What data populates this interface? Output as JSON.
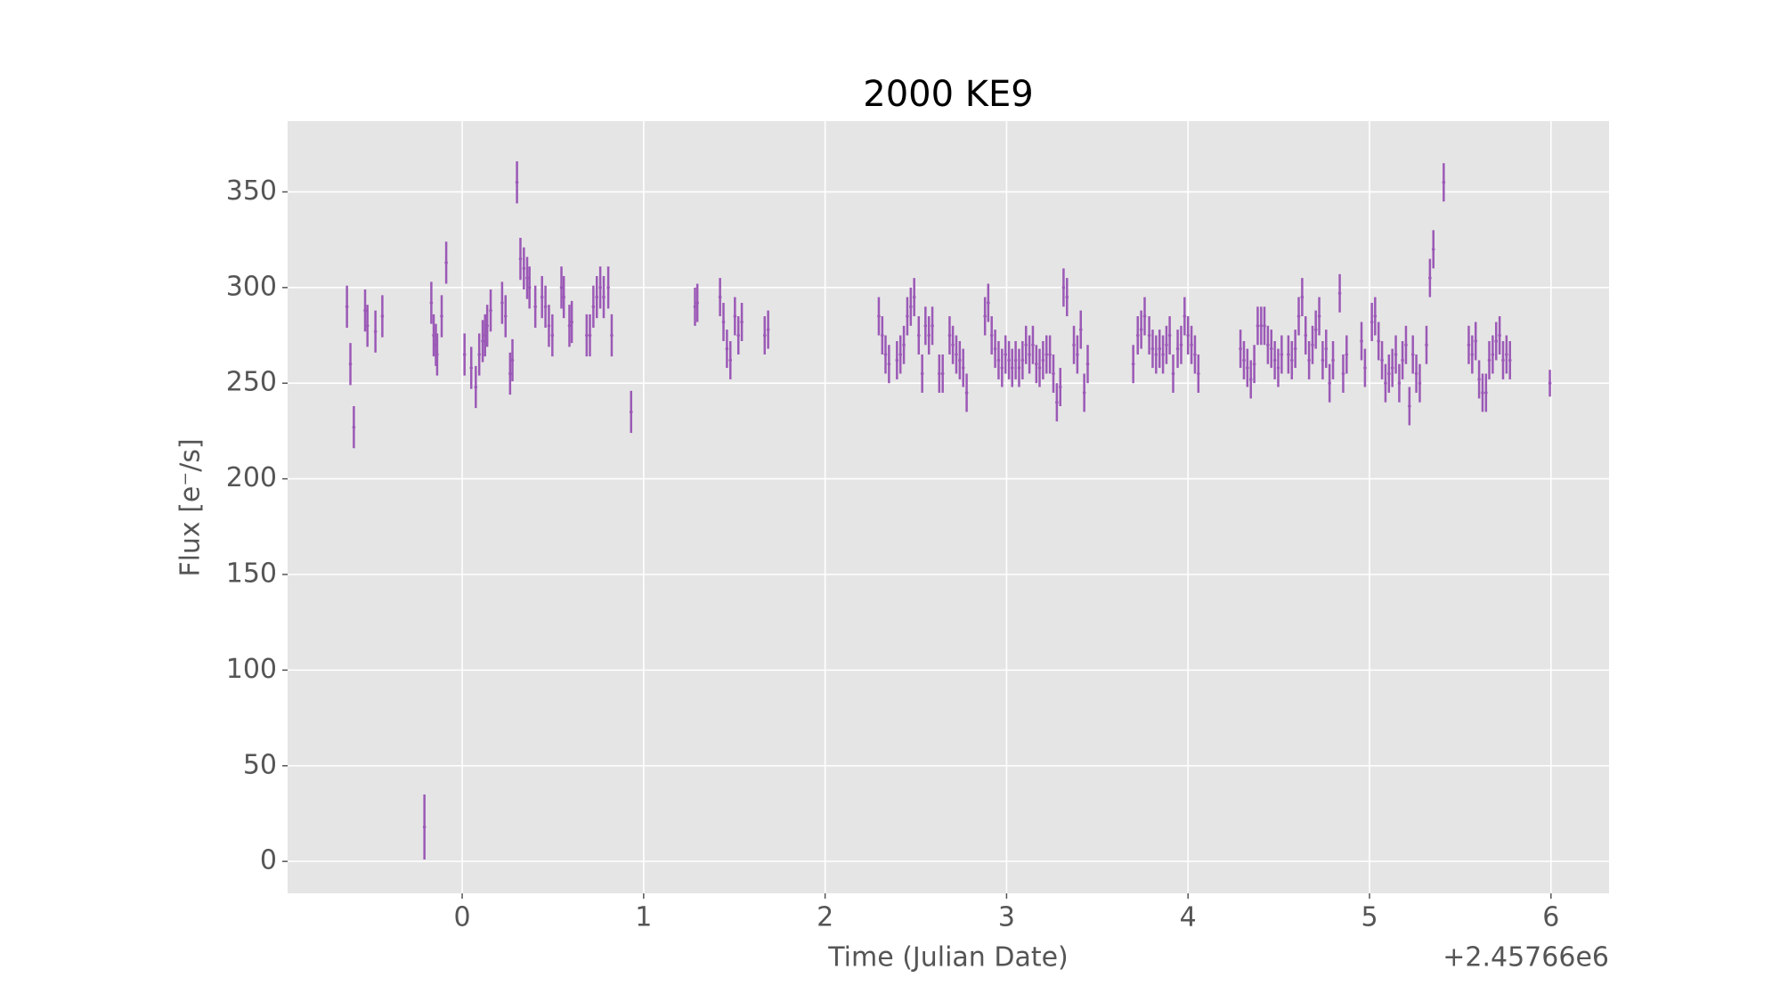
{
  "chart_data": {
    "type": "errorbar",
    "title": "2000 KE9",
    "x_label": "Time (Julian Date)",
    "y_label": "Flux [e⁻/s]",
    "x_offset_label": "+2.45766e6",
    "color": "#9b59b6",
    "grid": true,
    "xlim": [
      -0.962,
      6.32
    ],
    "ylim": [
      -16.7,
      387
    ],
    "xticks": [
      0,
      1,
      2,
      3,
      4,
      5,
      6
    ],
    "yticks": [
      0,
      50,
      100,
      150,
      200,
      250,
      300,
      350
    ],
    "x": [
      -0.635,
      -0.616,
      -0.597,
      -0.535,
      -0.522,
      -0.478,
      -0.44,
      -0.208,
      -0.17,
      -0.157,
      -0.145,
      -0.138,
      -0.113,
      -0.088,
      0.013,
      0.05,
      0.075,
      0.094,
      0.113,
      0.126,
      0.138,
      0.157,
      0.22,
      0.239,
      0.264,
      0.277,
      0.302,
      0.321,
      0.34,
      0.358,
      0.371,
      0.403,
      0.44,
      0.459,
      0.478,
      0.497,
      0.547,
      0.56,
      0.591,
      0.604,
      0.686,
      0.704,
      0.723,
      0.742,
      0.761,
      0.78,
      0.805,
      0.824,
      0.931,
      1.283,
      1.296,
      1.421,
      1.44,
      1.459,
      1.478,
      1.503,
      1.522,
      1.541,
      1.667,
      1.686,
      2.296,
      2.315,
      2.333,
      2.352,
      2.396,
      2.415,
      2.434,
      2.453,
      2.472,
      2.491,
      2.516,
      2.535,
      2.553,
      2.572,
      2.591,
      2.629,
      2.648,
      2.686,
      2.704,
      2.723,
      2.742,
      2.761,
      2.78,
      2.881,
      2.899,
      2.918,
      2.937,
      2.956,
      2.975,
      2.994,
      3.013,
      3.031,
      3.05,
      3.069,
      3.088,
      3.107,
      3.126,
      3.145,
      3.164,
      3.182,
      3.201,
      3.22,
      3.239,
      3.258,
      3.277,
      3.296,
      3.314,
      3.333,
      3.371,
      3.39,
      3.409,
      3.428,
      3.447,
      3.698,
      3.723,
      3.742,
      3.761,
      3.786,
      3.805,
      3.824,
      3.843,
      3.862,
      3.881,
      3.899,
      3.918,
      3.943,
      3.962,
      3.981,
      4.0,
      4.019,
      4.038,
      4.057,
      4.289,
      4.308,
      4.327,
      4.346,
      4.365,
      4.384,
      4.403,
      4.421,
      4.44,
      4.459,
      4.478,
      4.497,
      4.516,
      4.553,
      4.572,
      4.591,
      4.61,
      4.629,
      4.648,
      4.667,
      4.686,
      4.704,
      4.723,
      4.742,
      4.761,
      4.78,
      4.799,
      4.836,
      4.855,
      4.874,
      4.956,
      4.975,
      5.013,
      5.031,
      5.05,
      5.069,
      5.088,
      5.107,
      5.126,
      5.145,
      5.164,
      5.182,
      5.201,
      5.22,
      5.239,
      5.258,
      5.277,
      5.314,
      5.333,
      5.352,
      5.409,
      5.547,
      5.566,
      5.585,
      5.604,
      5.623,
      5.642,
      5.66,
      5.679,
      5.698,
      5.717,
      5.736,
      5.755,
      5.774,
      5.994
    ],
    "values": [
      290,
      260,
      227,
      288,
      280,
      277,
      285,
      18,
      292,
      275,
      270,
      265,
      285,
      313,
      265,
      258,
      248,
      265,
      272,
      275,
      280,
      288,
      292,
      285,
      255,
      262,
      355,
      315,
      310,
      305,
      300,
      290,
      295,
      290,
      280,
      275,
      300,
      295,
      280,
      282,
      275,
      275,
      290,
      295,
      300,
      295,
      300,
      275,
      235,
      290,
      292,
      295,
      282,
      268,
      262,
      285,
      275,
      282,
      275,
      278,
      285,
      275,
      265,
      260,
      262,
      265,
      270,
      285,
      290,
      295,
      275,
      255,
      280,
      275,
      280,
      255,
      255,
      275,
      270,
      265,
      262,
      258,
      245,
      285,
      292,
      275,
      268,
      262,
      258,
      265,
      262,
      258,
      262,
      258,
      262,
      270,
      265,
      270,
      260,
      258,
      262,
      265,
      265,
      255,
      240,
      248,
      300,
      295,
      270,
      265,
      278,
      245,
      260,
      260,
      275,
      278,
      285,
      275,
      268,
      265,
      268,
      265,
      270,
      275,
      255,
      268,
      270,
      285,
      275,
      270,
      265,
      255,
      268,
      262,
      258,
      252,
      260,
      280,
      280,
      280,
      270,
      268,
      262,
      258,
      265,
      265,
      262,
      268,
      285,
      295,
      275,
      262,
      270,
      278,
      285,
      262,
      268,
      250,
      262,
      297,
      255,
      265,
      272,
      258,
      282,
      285,
      272,
      262,
      250,
      255,
      258,
      265,
      250,
      262,
      270,
      238,
      265,
      255,
      250,
      270,
      305,
      320,
      355,
      270,
      265,
      272,
      252,
      245,
      245,
      262,
      265,
      272,
      275,
      262,
      265,
      262,
      250
    ],
    "errors": [
      11,
      11,
      11,
      11,
      11,
      11,
      11,
      17,
      11,
      11,
      11,
      11,
      11,
      11,
      11,
      11,
      11,
      11,
      11,
      11,
      11,
      11,
      11,
      11,
      11,
      11,
      11,
      11,
      11,
      11,
      11,
      11,
      11,
      11,
      11,
      11,
      11,
      11,
      11,
      11,
      11,
      11,
      11,
      11,
      11,
      11,
      11,
      11,
      11,
      10,
      10,
      10,
      10,
      10,
      10,
      10,
      10,
      10,
      10,
      10,
      10,
      10,
      10,
      10,
      10,
      10,
      10,
      10,
      10,
      10,
      10,
      10,
      10,
      10,
      10,
      10,
      10,
      10,
      10,
      10,
      10,
      10,
      10,
      10,
      10,
      10,
      10,
      10,
      10,
      10,
      10,
      10,
      10,
      10,
      10,
      10,
      10,
      10,
      10,
      10,
      10,
      10,
      10,
      10,
      10,
      10,
      10,
      10,
      10,
      10,
      10,
      10,
      10,
      10,
      10,
      10,
      10,
      10,
      10,
      10,
      10,
      10,
      10,
      10,
      10,
      10,
      10,
      10,
      10,
      10,
      10,
      10,
      10,
      10,
      10,
      10,
      10,
      10,
      10,
      10,
      10,
      10,
      10,
      10,
      10,
      10,
      10,
      10,
      10,
      10,
      10,
      10,
      10,
      10,
      10,
      10,
      10,
      10,
      10,
      10,
      10,
      10,
      10,
      10,
      10,
      10,
      10,
      10,
      10,
      10,
      10,
      10,
      10,
      10,
      10,
      10,
      10,
      10,
      10,
      10,
      10,
      10,
      10,
      10,
      10,
      10,
      10,
      10,
      10,
      10,
      10,
      10,
      10,
      10,
      10,
      10,
      7
    ]
  }
}
